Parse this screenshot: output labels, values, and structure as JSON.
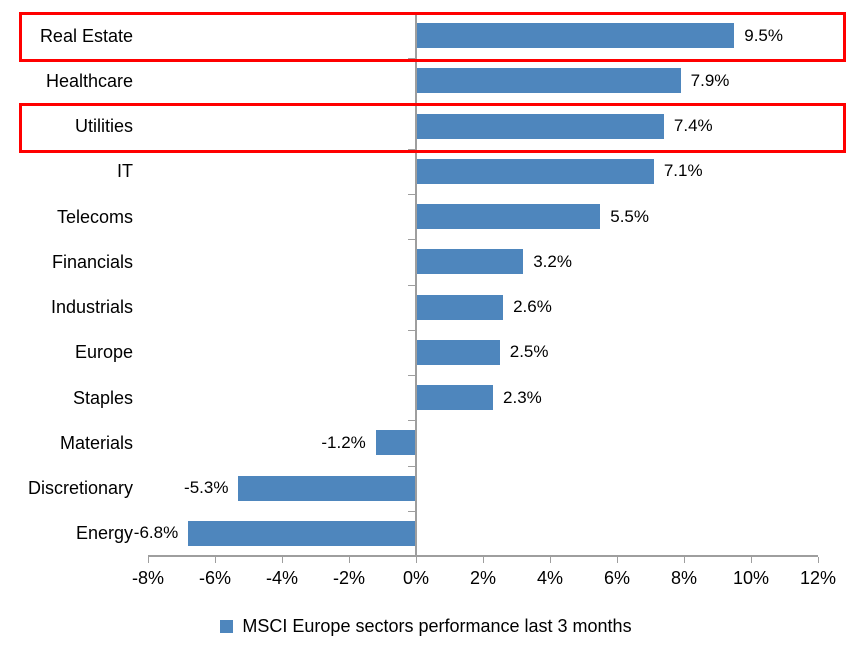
{
  "chart_data": {
    "type": "bar",
    "orientation": "horizontal",
    "title": "",
    "categories": [
      "Real Estate",
      "Healthcare",
      "Utilities",
      "IT",
      "Telecoms",
      "Financials",
      "Industrials",
      "Europe",
      "Staples",
      "Materials",
      "Discretionary",
      "Energy"
    ],
    "values": [
      9.5,
      7.9,
      7.4,
      7.1,
      5.5,
      3.2,
      2.6,
      2.5,
      2.3,
      -1.2,
      -5.3,
      -6.8
    ],
    "value_labels": [
      "9.5%",
      "7.9%",
      "7.4%",
      "7.1%",
      "5.5%",
      "3.2%",
      "2.6%",
      "2.5%",
      "2.3%",
      "-1.2%",
      "-5.3%",
      "-6.8%"
    ],
    "x_tick_values": [
      -8,
      -6,
      -4,
      -2,
      0,
      2,
      4,
      6,
      8,
      10,
      12
    ],
    "x_tick_labels": [
      "-8%",
      "-6%",
      "-4%",
      "-2%",
      "0%",
      "2%",
      "4%",
      "6%",
      "8%",
      "10%",
      "12%"
    ],
    "xlim": [
      -8,
      12
    ],
    "grid": false,
    "legend": "MSCI Europe sectors performance last 3 months",
    "legend_position": "bottom",
    "bar_color": "#4E86BD",
    "axis_color": "#9E9E9E",
    "highlight_color": "#FF0000",
    "highlighted_categories": [
      "Real Estate",
      "Utilities"
    ]
  }
}
